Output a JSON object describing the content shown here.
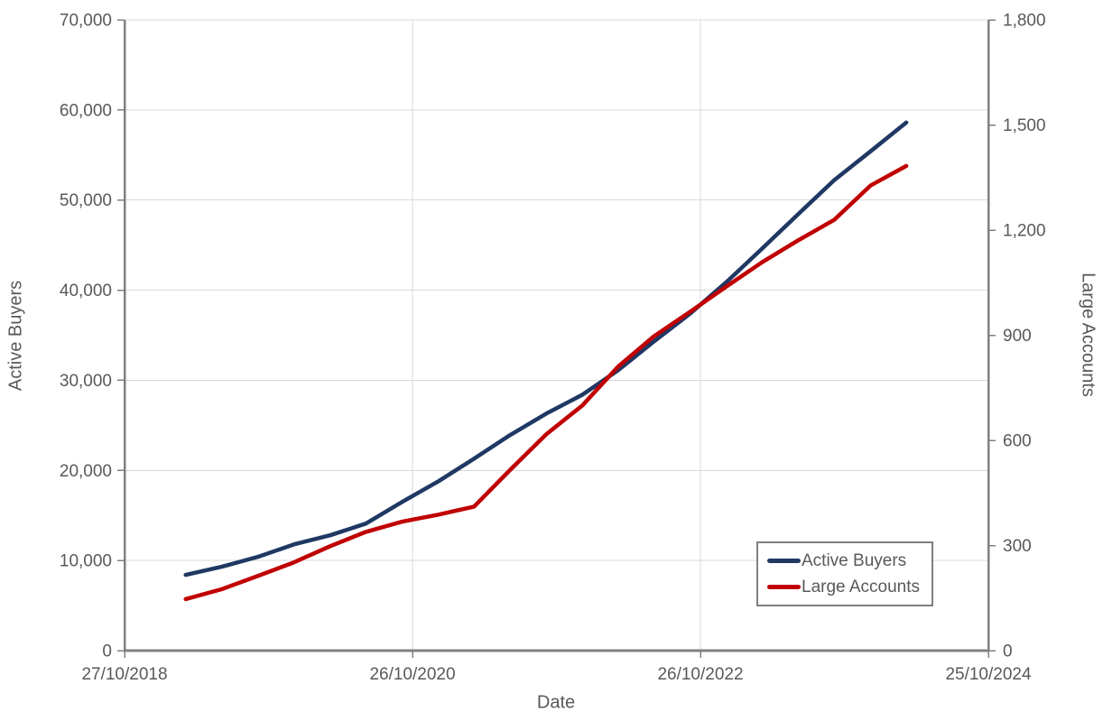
{
  "chart_data": {
    "type": "line",
    "title": "",
    "x_dates": [
      "2019-03-31",
      "2019-06-30",
      "2019-09-30",
      "2019-12-31",
      "2020-03-31",
      "2020-06-30",
      "2020-09-30",
      "2020-12-31",
      "2021-03-31",
      "2021-06-30",
      "2021-09-30",
      "2021-12-31",
      "2022-03-31",
      "2022-06-30",
      "2022-09-30",
      "2022-12-31",
      "2023-03-31",
      "2023-06-30",
      "2023-09-30",
      "2023-12-31",
      "2024-03-31"
    ],
    "series": [
      {
        "name": "Active Buyers",
        "axis": "left",
        "color": "#1F3864",
        "values": [
          8400,
          9300,
          10400,
          11800,
          12800,
          14100,
          16500,
          18800,
          21300,
          23900,
          26300,
          28400,
          31100,
          34300,
          37400,
          40900,
          44600,
          48400,
          52200,
          55400,
          58600
        ]
      },
      {
        "name": "Large Accounts",
        "axis": "right",
        "color": "#C00000",
        "values": [
          147,
          175,
          213,
          252,
          298,
          339,
          368,
          388,
          411,
          515,
          617,
          700,
          810,
          897,
          967,
          1039,
          1108,
          1170,
          1229,
          1327,
          1383
        ]
      }
    ],
    "x_axis": {
      "title": "Date",
      "tick_labels": [
        "27/10/2018",
        "26/10/2020",
        "26/10/2022",
        "25/10/2024"
      ],
      "tick_dates": [
        "2018-10-27",
        "2020-10-26",
        "2022-10-26",
        "2024-10-25"
      ]
    },
    "left_axis": {
      "title": "Active Buyers",
      "min": 0,
      "max": 70000,
      "step": 10000
    },
    "right_axis": {
      "title": "Large Accounts",
      "min": 0,
      "max": 1800,
      "step": 300
    },
    "legend": {
      "position": "inside-bottom-right",
      "entries": [
        "Active Buyers",
        "Large Accounts"
      ]
    },
    "grid": {
      "horizontal": true,
      "vertical": true
    },
    "colors": {
      "gridline": "#D9D9D9",
      "axis_line": "#808080",
      "label_text": "#595959"
    }
  }
}
